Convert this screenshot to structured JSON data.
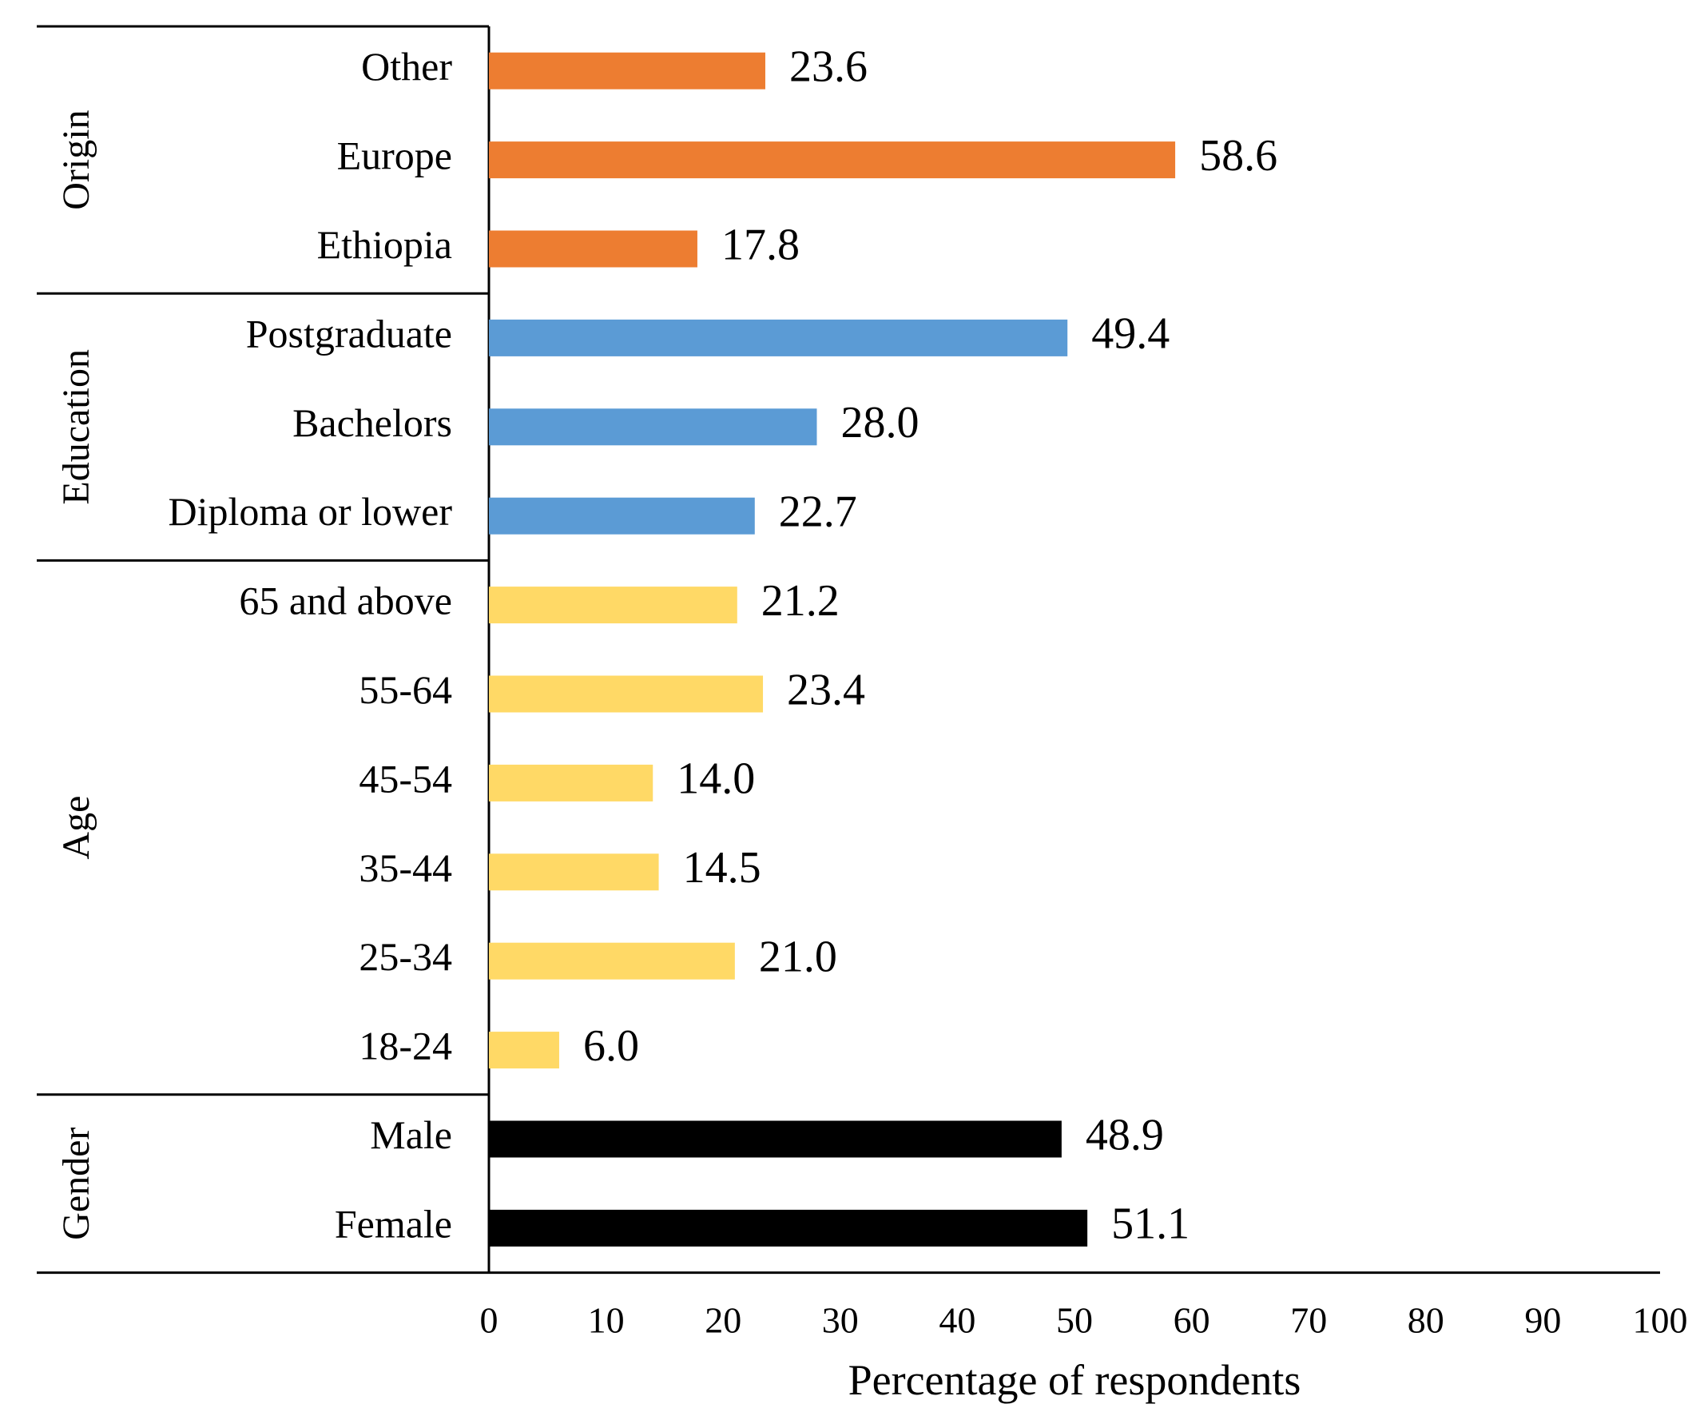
{
  "chart_data": {
    "type": "bar",
    "orientation": "horizontal",
    "xlabel": "Percentage of respondents",
    "xlim": [
      0,
      100
    ],
    "xticks": [
      "0",
      "10",
      "20",
      "30",
      "40",
      "50",
      "60",
      "70",
      "80",
      "90",
      "100"
    ],
    "groups": [
      {
        "name": "Origin",
        "color": "#ED7D31",
        "categories": [
          "Other",
          "Europe",
          "Ethiopia"
        ],
        "values": [
          23.6,
          58.6,
          17.8
        ],
        "value_labels": [
          "23.6",
          "58.6",
          "17.8"
        ]
      },
      {
        "name": "Education",
        "color": "#5B9BD5",
        "categories": [
          "Postgraduate",
          "Bachelors",
          "Diploma or lower"
        ],
        "values": [
          49.4,
          28.0,
          22.7
        ],
        "value_labels": [
          "49.4",
          "28.0",
          "22.7"
        ]
      },
      {
        "name": "Age",
        "color": "#FFD966",
        "categories": [
          "65 and above",
          "55-64",
          "45-54",
          "35-44",
          "25-34",
          "18-24"
        ],
        "values": [
          21.2,
          23.4,
          14.0,
          14.5,
          21.0,
          6.0
        ],
        "value_labels": [
          "21.2",
          "23.4",
          "14.0",
          "14.5",
          "21.0",
          "6.0"
        ]
      },
      {
        "name": "Gender",
        "color": "#000000",
        "categories": [
          "Male",
          "Female"
        ],
        "values": [
          48.9,
          51.1
        ],
        "value_labels": [
          "48.9",
          "51.1"
        ]
      }
    ]
  }
}
